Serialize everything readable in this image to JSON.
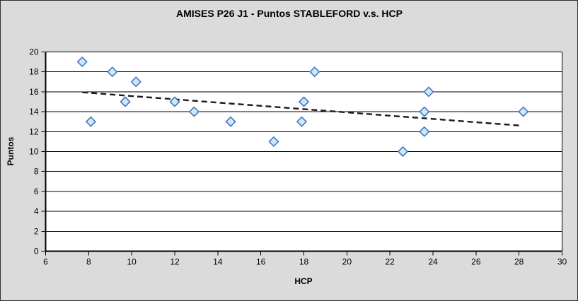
{
  "window": {
    "title": "AMISES P26 J1 - Puntos STABLEFORD v.s. HCP"
  },
  "chart_data": {
    "type": "scatter",
    "title": "AMISES P26 J1 - Puntos STABLEFORD v.s. HCP",
    "xlabel": "HCP",
    "ylabel": "Puntos",
    "xlim": [
      6,
      30
    ],
    "ylim": [
      0,
      20
    ],
    "x_ticks": [
      6,
      8,
      10,
      12,
      14,
      16,
      18,
      20,
      22,
      24,
      26,
      28,
      30
    ],
    "y_ticks": [
      0,
      2,
      4,
      6,
      8,
      10,
      12,
      14,
      16,
      18,
      20
    ],
    "grid": "horizontal-only",
    "legend": "none",
    "series": [
      {
        "name": "Puntos STABLEFORD",
        "marker": "diamond",
        "points": [
          {
            "hcp": 7.7,
            "puntos": 19
          },
          {
            "hcp": 8.1,
            "puntos": 13
          },
          {
            "hcp": 9.1,
            "puntos": 18
          },
          {
            "hcp": 9.7,
            "puntos": 15
          },
          {
            "hcp": 10.2,
            "puntos": 17
          },
          {
            "hcp": 12.0,
            "puntos": 15
          },
          {
            "hcp": 12.9,
            "puntos": 14
          },
          {
            "hcp": 14.6,
            "puntos": 13
          },
          {
            "hcp": 16.6,
            "puntos": 11
          },
          {
            "hcp": 17.9,
            "puntos": 13
          },
          {
            "hcp": 18.0,
            "puntos": 15
          },
          {
            "hcp": 18.5,
            "puntos": 18
          },
          {
            "hcp": 22.6,
            "puntos": 10
          },
          {
            "hcp": 23.6,
            "puntos": 12
          },
          {
            "hcp": 23.6,
            "puntos": 14
          },
          {
            "hcp": 23.8,
            "puntos": 16
          },
          {
            "hcp": 28.2,
            "puntos": 14
          }
        ]
      }
    ],
    "trendline": {
      "style": "dashed",
      "x1": 7.7,
      "y1": 15.95,
      "x2": 28.1,
      "y2": 12.6
    },
    "colors": {
      "background": "#dbdbdb",
      "plot_background": "#ffffff",
      "gridline": "#000000",
      "axis": "#000000",
      "marker_fill": "#cbe9fc",
      "marker_stroke": "#4a76b8",
      "trendline": "#1a1a1a",
      "frame_border": "#2f2f2f",
      "text": "#000000"
    }
  }
}
